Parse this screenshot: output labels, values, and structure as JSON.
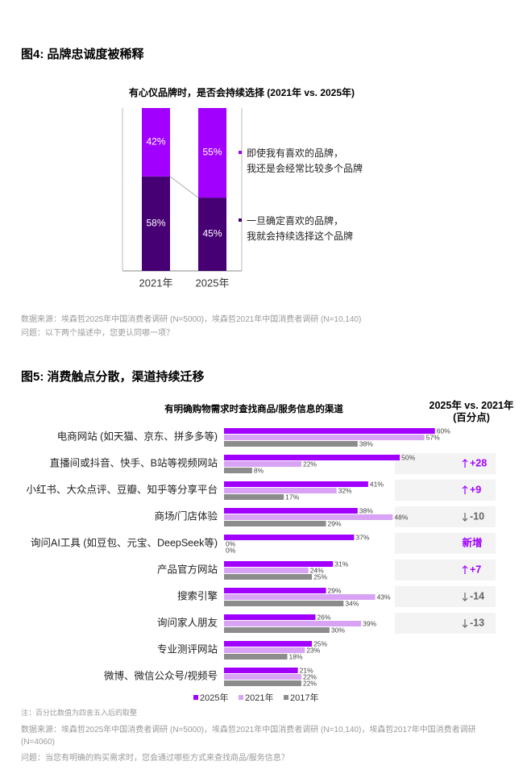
{
  "chart_data": [
    {
      "type": "bar",
      "stacked": true,
      "heading": "图4: 品牌忠诚度被稀释",
      "title": "有心仪品牌时，是否会持续选择 (2021年 vs. 2025年)",
      "categories": [
        "2021年",
        "2025年"
      ],
      "series": [
        {
          "name": "一旦确定喜欢的品牌，\n我就会持续选择这个品牌",
          "color": "#460073",
          "values": [
            58,
            45
          ],
          "value_labels": [
            "58%",
            "45%"
          ]
        },
        {
          "name": "即使我有喜欢的品牌，\n我还是会经常比较多个品牌",
          "color": "#a100ff",
          "values": [
            42,
            55
          ],
          "value_labels": [
            "42%",
            "55%"
          ]
        }
      ],
      "ylim": [
        0,
        100
      ],
      "source": "数据来源：埃森哲2025年中国消费者调研 (N=5000)，埃森哲2021年中国消费者调研 (N=10,140)",
      "question": "问题：以下两个描述中，您更认同哪一项？"
    },
    {
      "type": "bar",
      "orientation": "horizontal",
      "heading": "图5: 消费触点分散，渠道持续迁移",
      "title": "有明确购物需求时查找商品/服务信息的渠道",
      "change_header": "2025年 vs. 2021年\n(百分点)",
      "categories": [
        "电商网站 (如天猫、京东、拼多多等)",
        "直播间或抖音、快手、B站等视频网站",
        "小红书、大众点评、豆瓣、知乎等分享平台",
        "商场/门店体验",
        "询问AI工具 (如豆包、元宝、DeepSeek等)",
        "产品官方网站",
        "搜索引擎",
        "询问家人朋友",
        "专业测评网站",
        "微博、微信公众号/视频号"
      ],
      "series": [
        {
          "name": "2025年",
          "color": "#a100ff",
          "values": [
            60,
            50,
            41,
            38,
            37,
            31,
            29,
            26,
            25,
            21
          ],
          "value_labels": [
            "60%",
            "50%",
            "41%",
            "38%",
            "37%",
            "31%",
            "29%",
            "26%",
            "25%",
            "21%"
          ]
        },
        {
          "name": "2021年",
          "color": "#d9a3f5",
          "values": [
            57,
            22,
            32,
            48,
            0,
            24,
            43,
            39,
            23,
            22
          ],
          "value_labels": [
            "57%",
            "22%",
            "32%",
            "48%",
            "0%",
            "24%",
            "43%",
            "39%",
            "23%",
            "22%"
          ]
        },
        {
          "name": "2017年",
          "color": "#8c8c8c",
          "values": [
            38,
            8,
            17,
            29,
            0,
            25,
            34,
            30,
            18,
            22
          ],
          "value_labels": [
            "38%",
            "8%",
            "17%",
            "29%",
            "0%",
            "25%",
            "34%",
            "30%",
            "18%",
            "22%"
          ]
        }
      ],
      "change_labels": [
        null,
        "+28",
        "+9",
        "-10",
        "新增",
        "+7",
        "-14",
        "-13",
        null,
        null
      ],
      "xlim": [
        0,
        80
      ],
      "note": "注：百分比数值为四舍五入后的取整",
      "source": "数据来源：埃森哲2025年中国消费者调研 (N=5000)，埃森哲2021年中国消费者调研 (N=10,140)，埃森哲2017年中国消费者调研 (N=4060)",
      "question": "问题：当您有明确的购买需求时，您会通过哪些方式来查找商品/服务信息？"
    }
  ]
}
